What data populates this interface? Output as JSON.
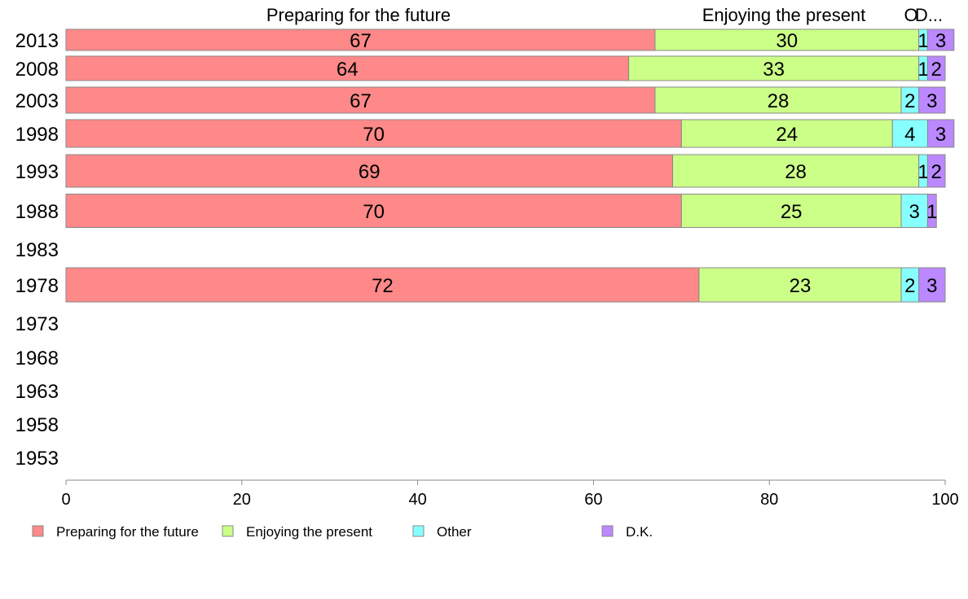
{
  "chart_data": {
    "type": "bar",
    "orientation": "horizontal",
    "stacked": true,
    "categories": [
      "2013",
      "2008",
      "2003",
      "1998",
      "1993",
      "1988",
      "1983",
      "1978",
      "1973",
      "1968",
      "1963",
      "1958",
      "1953"
    ],
    "series": [
      {
        "name": "Preparing for the future",
        "color": "#ff8888",
        "values": [
          67,
          64,
          67,
          70,
          69,
          70,
          null,
          72,
          null,
          null,
          null,
          null,
          null
        ]
      },
      {
        "name": "Enjoying the present",
        "color": "#ccff88",
        "values": [
          30,
          33,
          28,
          24,
          28,
          25,
          null,
          23,
          null,
          null,
          null,
          null,
          null
        ]
      },
      {
        "name": "Other",
        "color": "#88ffff",
        "values": [
          1,
          1,
          2,
          4,
          1,
          3,
          null,
          2,
          null,
          null,
          null,
          null,
          null
        ]
      },
      {
        "name": "D.K.",
        "color": "#bb88ff",
        "values": [
          3,
          2,
          3,
          3,
          2,
          1,
          null,
          3,
          null,
          null,
          null,
          null,
          null
        ]
      }
    ],
    "column_headers": [
      "Preparing for the future",
      "Enjoying the present",
      "O",
      "D..."
    ],
    "xlim": [
      0,
      100
    ],
    "xticks": [
      0,
      20,
      40,
      60,
      80,
      100
    ],
    "grid": false,
    "legend_position": "bottom"
  }
}
